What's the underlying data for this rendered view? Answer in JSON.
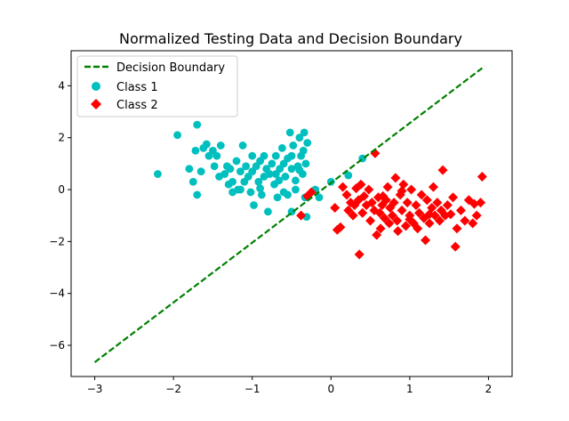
{
  "chart_data": {
    "type": "scatter",
    "title": "Normalized Testing Data and Decision Boundary",
    "xlabel": "",
    "ylabel": "",
    "xlim": [
      -3.3,
      2.3
    ],
    "ylim": [
      -7.2,
      5.35
    ],
    "xticks": [
      -3,
      -2,
      -1,
      0,
      1,
      2
    ],
    "xtick_labels": [
      "−3",
      "−2",
      "−1",
      "0",
      "1",
      "2"
    ],
    "yticks": [
      -6,
      -4,
      -2,
      0,
      2,
      4
    ],
    "ytick_labels": [
      "−6",
      "−4",
      "−2",
      "0",
      "2",
      "4"
    ],
    "grid": false,
    "legend_position": "top-left",
    "decision_boundary": {
      "name": "Decision Boundary",
      "color": "#008000",
      "style": "dashed",
      "x": [
        -3.0,
        1.95
      ],
      "y": [
        -6.65,
        4.75
      ]
    },
    "series": [
      {
        "name": "Class 1",
        "marker": "circle",
        "color": "#00bfbf",
        "points": [
          [
            -2.2,
            0.6
          ],
          [
            -1.95,
            2.1
          ],
          [
            -1.8,
            0.8
          ],
          [
            -1.7,
            2.5
          ],
          [
            -1.72,
            1.5
          ],
          [
            -1.75,
            0.3
          ],
          [
            -1.7,
            -0.2
          ],
          [
            -1.65,
            0.7
          ],
          [
            -1.62,
            1.6
          ],
          [
            -1.58,
            1.75
          ],
          [
            -1.55,
            1.3
          ],
          [
            -1.5,
            1.5
          ],
          [
            -1.48,
            0.9
          ],
          [
            -1.45,
            1.3
          ],
          [
            -1.42,
            0.5
          ],
          [
            -1.4,
            1.7
          ],
          [
            -1.35,
            0.6
          ],
          [
            -1.32,
            0.9
          ],
          [
            -1.3,
            0.2
          ],
          [
            -1.28,
            0.8
          ],
          [
            -1.25,
            0.3
          ],
          [
            -1.2,
            1.1
          ],
          [
            -1.18,
            0.0
          ],
          [
            -1.15,
            0.7
          ],
          [
            -1.12,
            1.7
          ],
          [
            -1.1,
            0.3
          ],
          [
            -1.08,
            0.9
          ],
          [
            -1.05,
            0.5
          ],
          [
            -1.02,
            -0.1
          ],
          [
            -1.0,
            1.3
          ],
          [
            -0.98,
            -0.6
          ],
          [
            -0.95,
            0.9
          ],
          [
            -0.92,
            0.3
          ],
          [
            -0.9,
            1.1
          ],
          [
            -0.88,
            -0.2
          ],
          [
            -0.85,
            1.3
          ],
          [
            -0.82,
            0.8
          ],
          [
            -0.8,
            -0.85
          ],
          [
            -0.78,
            0.6
          ],
          [
            -0.75,
            1.0
          ],
          [
            -0.72,
            0.2
          ],
          [
            -0.7,
            1.3
          ],
          [
            -0.68,
            -0.3
          ],
          [
            -0.65,
            0.8
          ],
          [
            -0.62,
            1.6
          ],
          [
            -0.6,
            -0.1
          ],
          [
            -0.58,
            0.5
          ],
          [
            -0.55,
            1.2
          ],
          [
            -0.52,
            2.2
          ],
          [
            -0.5,
            0.8
          ],
          [
            -0.48,
            1.7
          ],
          [
            -0.45,
            0.0
          ],
          [
            -0.42,
            0.9
          ],
          [
            -0.4,
            2.0
          ],
          [
            -0.38,
            1.3
          ],
          [
            -0.36,
            0.6
          ],
          [
            -0.35,
            1.5
          ],
          [
            -0.34,
            2.2
          ],
          [
            -0.33,
            -0.3
          ],
          [
            -0.32,
            1.0
          ],
          [
            -0.3,
            1.8
          ],
          [
            -0.31,
            -1.05
          ],
          [
            -0.5,
            -0.85
          ],
          [
            -0.6,
            1.0
          ],
          [
            -0.7,
            0.6
          ],
          [
            -0.85,
            0.5
          ],
          [
            -1.0,
            0.7
          ],
          [
            -1.15,
            0.0
          ],
          [
            -1.25,
            -0.1
          ],
          [
            -0.9,
            0.05
          ],
          [
            -0.66,
            0.35
          ],
          [
            -0.45,
            0.35
          ],
          [
            -0.5,
            1.3
          ],
          [
            -0.55,
            -0.2
          ],
          [
            -0.4,
            0.75
          ],
          [
            -0.2,
            0.0
          ],
          [
            -0.15,
            -0.3
          ],
          [
            0.0,
            0.3
          ],
          [
            0.22,
            0.55
          ],
          [
            0.4,
            1.2
          ]
        ]
      },
      {
        "name": "Class 2",
        "marker": "diamond",
        "color": "#ff0000",
        "points": [
          [
            -0.38,
            -1.0
          ],
          [
            -0.3,
            -0.25
          ],
          [
            -0.25,
            -0.1
          ],
          [
            0.05,
            -0.7
          ],
          [
            0.08,
            -1.55
          ],
          [
            0.12,
            -1.45
          ],
          [
            0.15,
            0.1
          ],
          [
            0.2,
            -0.2
          ],
          [
            0.22,
            -0.8
          ],
          [
            0.25,
            -0.5
          ],
          [
            0.28,
            -1.0
          ],
          [
            0.3,
            -0.6
          ],
          [
            0.32,
            0.05
          ],
          [
            0.35,
            -0.4
          ],
          [
            0.36,
            -2.5
          ],
          [
            0.38,
            0.2
          ],
          [
            0.4,
            -0.9
          ],
          [
            0.42,
            -0.25
          ],
          [
            0.45,
            -0.6
          ],
          [
            0.48,
            0.0
          ],
          [
            0.5,
            -1.2
          ],
          [
            0.52,
            -0.5
          ],
          [
            0.55,
            -0.8
          ],
          [
            0.56,
            1.4
          ],
          [
            0.58,
            -1.75
          ],
          [
            0.6,
            -0.3
          ],
          [
            0.62,
            -0.9
          ],
          [
            0.63,
            -1.5
          ],
          [
            0.65,
            -0.6
          ],
          [
            0.68,
            -1.1
          ],
          [
            0.7,
            -0.4
          ],
          [
            0.72,
            0.1
          ],
          [
            0.74,
            -1.3
          ],
          [
            0.75,
            -0.7
          ],
          [
            0.78,
            -1.0
          ],
          [
            0.8,
            -0.5
          ],
          [
            0.82,
            0.45
          ],
          [
            0.84,
            -1.2
          ],
          [
            0.85,
            -1.6
          ],
          [
            0.88,
            -0.2
          ],
          [
            0.9,
            -0.8
          ],
          [
            0.92,
            0.2
          ],
          [
            0.95,
            -1.4
          ],
          [
            0.97,
            -0.5
          ],
          [
            1.0,
            -1.0
          ],
          [
            1.02,
            0.0
          ],
          [
            1.05,
            -1.3
          ],
          [
            1.08,
            -0.6
          ],
          [
            1.1,
            -1.5
          ],
          [
            1.12,
            -0.9
          ],
          [
            1.15,
            -0.2
          ],
          [
            1.18,
            -1.1
          ],
          [
            1.2,
            -1.95
          ],
          [
            1.22,
            -0.4
          ],
          [
            1.25,
            -1.3
          ],
          [
            1.28,
            -0.7
          ],
          [
            1.3,
            0.1
          ],
          [
            1.32,
            -1.0
          ],
          [
            1.35,
            -0.5
          ],
          [
            1.38,
            -1.2
          ],
          [
            1.4,
            -0.8
          ],
          [
            1.42,
            0.75
          ],
          [
            1.45,
            -1.0
          ],
          [
            1.48,
            -0.6
          ],
          [
            1.52,
            -0.95
          ],
          [
            1.55,
            -0.3
          ],
          [
            1.58,
            -2.2
          ],
          [
            1.6,
            -1.5
          ],
          [
            1.65,
            -0.8
          ],
          [
            1.7,
            -1.2
          ],
          [
            1.75,
            -0.4
          ],
          [
            1.8,
            -1.3
          ],
          [
            1.85,
            -1.0
          ],
          [
            1.9,
            -0.5
          ],
          [
            1.92,
            0.5
          ],
          [
            1.82,
            -0.55
          ],
          [
            1.0,
            -1.15
          ],
          [
            0.66,
            -0.25
          ],
          [
            0.9,
            -0.05
          ],
          [
            1.25,
            -0.95
          ]
        ]
      }
    ]
  }
}
